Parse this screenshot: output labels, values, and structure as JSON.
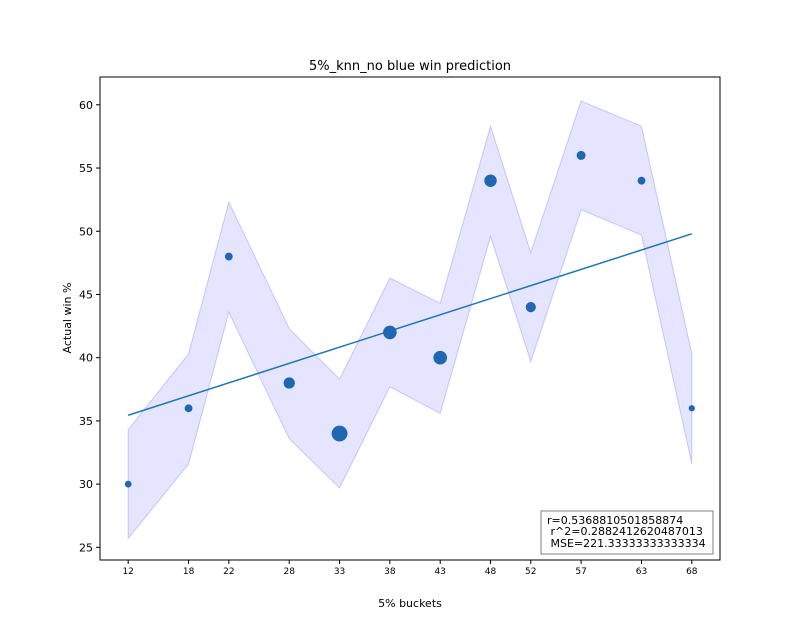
{
  "chart_data": {
    "type": "scatter",
    "title": "5%_knn_no blue win prediction",
    "xlabel": "5% buckets",
    "ylabel": "Actual win %",
    "x_ticks": [
      "12",
      "18",
      "22",
      "28",
      "33",
      "38",
      "43",
      "48",
      "52",
      "57",
      "63",
      "68"
    ],
    "y_ticks": [
      25,
      30,
      35,
      40,
      45,
      50,
      55,
      60
    ],
    "xlim": [
      9.2,
      70.8
    ],
    "ylim": [
      24.0,
      62.2
    ],
    "grid": false,
    "points": [
      {
        "x": 12,
        "y": 30,
        "weight": 1
      },
      {
        "x": 18,
        "y": 36,
        "weight": 1.5
      },
      {
        "x": 22,
        "y": 48,
        "weight": 1.5
      },
      {
        "x": 28,
        "y": 38,
        "weight": 3
      },
      {
        "x": 33,
        "y": 34,
        "weight": 5
      },
      {
        "x": 38,
        "y": 42,
        "weight": 4
      },
      {
        "x": 43,
        "y": 40,
        "weight": 4
      },
      {
        "x": 48,
        "y": 54,
        "weight": 3.5
      },
      {
        "x": 52,
        "y": 44,
        "weight": 2.5
      },
      {
        "x": 57,
        "y": 56,
        "weight": 2
      },
      {
        "x": 63,
        "y": 54,
        "weight": 1.5
      },
      {
        "x": 68,
        "y": 36,
        "weight": 0.8
      }
    ],
    "band": [
      {
        "x": 12,
        "lower": 25.7,
        "upper": 34.3
      },
      {
        "x": 18,
        "lower": 31.6,
        "upper": 40.3
      },
      {
        "x": 22,
        "lower": 43.6,
        "upper": 52.3
      },
      {
        "x": 28,
        "lower": 33.6,
        "upper": 42.3
      },
      {
        "x": 33,
        "lower": 29.7,
        "upper": 38.3
      },
      {
        "x": 38,
        "lower": 37.7,
        "upper": 46.3
      },
      {
        "x": 43,
        "lower": 35.6,
        "upper": 44.3
      },
      {
        "x": 48,
        "lower": 49.6,
        "upper": 58.3
      },
      {
        "x": 52,
        "lower": 39.7,
        "upper": 48.3
      },
      {
        "x": 57,
        "lower": 51.7,
        "upper": 60.3
      },
      {
        "x": 63,
        "lower": 49.7,
        "upper": 58.3
      },
      {
        "x": 68,
        "lower": 31.6,
        "upper": 40.3
      }
    ],
    "fit_line": {
      "x": [
        12,
        68
      ],
      "y": [
        35.45,
        49.8
      ]
    },
    "colors": {
      "points": "#1f66b3",
      "line": "#1f77b4",
      "band_fill": "#0000ff",
      "band_edge": "#4040ff"
    },
    "stats_box": {
      "placement": "bottom-right",
      "lines": [
        "r=0.5368810501858874",
        " r^2=0.2882412620487013",
        " MSE=221.33333333333334"
      ]
    }
  }
}
